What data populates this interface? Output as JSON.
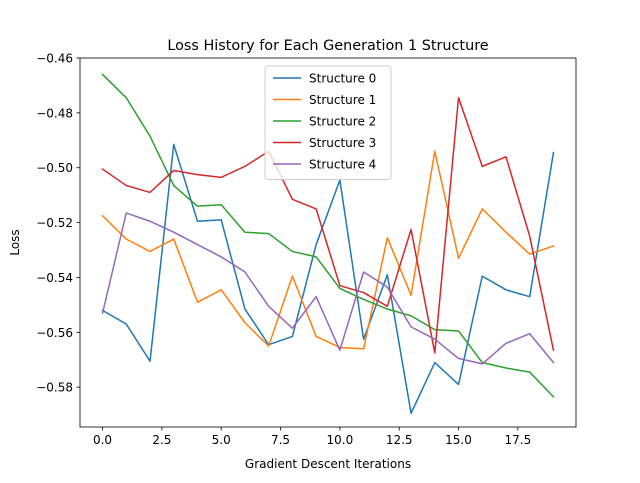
{
  "chart_data": {
    "type": "line",
    "title": "Loss History for Each Generation 1 Structure",
    "xlabel": "Gradient Descent Iterations",
    "ylabel": "Loss",
    "xlim": [
      -0.95,
      19.95
    ],
    "ylim": [
      -0.5945,
      -0.46
    ],
    "xticks": [
      0.0,
      2.5,
      5.0,
      7.5,
      10.0,
      12.5,
      15.0,
      17.5
    ],
    "xtick_labels": [
      "0.0",
      "2.5",
      "5.0",
      "7.5",
      "10.0",
      "12.5",
      "15.0",
      "17.5"
    ],
    "yticks": [
      -0.58,
      -0.56,
      -0.54,
      -0.52,
      -0.5,
      -0.48,
      -0.46
    ],
    "ytick_labels": [
      "−0.58",
      "−0.56",
      "−0.54",
      "−0.52",
      "−0.50",
      "−0.48",
      "−0.46"
    ],
    "grid": false,
    "legend_position": "top-center",
    "x": [
      0,
      1,
      2,
      3,
      4,
      5,
      6,
      7,
      8,
      9,
      10,
      11,
      12,
      13,
      14,
      15,
      16,
      17,
      18,
      19
    ],
    "series": [
      {
        "name": "Structure 0",
        "color": "#1f77b4",
        "values": [
          -0.552,
          -0.557,
          -0.5705,
          -0.4915,
          -0.5195,
          -0.519,
          -0.5515,
          -0.5645,
          -0.5615,
          -0.528,
          -0.5045,
          -0.5625,
          -0.539,
          -0.5895,
          -0.571,
          -0.579,
          -0.5395,
          -0.5445,
          -0.547,
          -0.4945
        ]
      },
      {
        "name": "Structure 1",
        "color": "#ff7f0e",
        "values": [
          -0.5175,
          -0.526,
          -0.5305,
          -0.526,
          -0.549,
          -0.5445,
          -0.5565,
          -0.565,
          -0.5395,
          -0.5615,
          -0.5655,
          -0.566,
          -0.5255,
          -0.5465,
          -0.494,
          -0.533,
          -0.515,
          -0.5235,
          -0.5315,
          -0.5285
        ]
      },
      {
        "name": "Structure 2",
        "color": "#2ca02c",
        "values": [
          -0.466,
          -0.4745,
          -0.4885,
          -0.5065,
          -0.514,
          -0.5135,
          -0.5235,
          -0.524,
          -0.5305,
          -0.5325,
          -0.544,
          -0.548,
          -0.5515,
          -0.554,
          -0.559,
          -0.5595,
          -0.571,
          -0.573,
          -0.5745,
          -0.5835
        ]
      },
      {
        "name": "Structure 3",
        "color": "#d62728",
        "values": [
          -0.5005,
          -0.5065,
          -0.509,
          -0.501,
          -0.5025,
          -0.5035,
          -0.4995,
          -0.494,
          -0.5115,
          -0.515,
          -0.543,
          -0.5455,
          -0.5505,
          -0.5225,
          -0.5675,
          -0.4745,
          -0.4995,
          -0.496,
          -0.525,
          -0.5665
        ]
      },
      {
        "name": "Structure 4",
        "color": "#9467bd",
        "values": [
          -0.553,
          -0.5165,
          -0.5195,
          -0.5235,
          -0.528,
          -0.5325,
          -0.538,
          -0.5505,
          -0.5585,
          -0.547,
          -0.5665,
          -0.538,
          -0.5435,
          -0.558,
          -0.5625,
          -0.5695,
          -0.5715,
          -0.564,
          -0.5605,
          -0.571
        ]
      }
    ]
  }
}
